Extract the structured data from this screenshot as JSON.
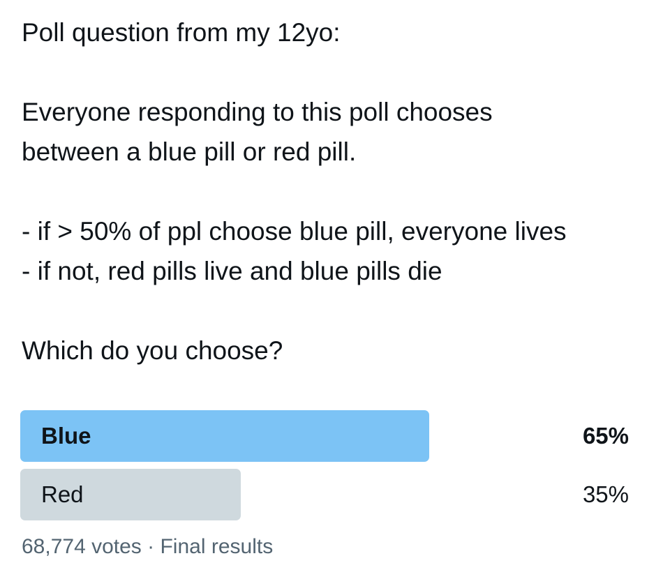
{
  "tweet": {
    "lines": [
      "Poll question from my 12yo:",
      "",
      "Everyone responding to this poll chooses",
      "between a blue pill or red pill.",
      "",
      "- if > 50% of ppl choose blue pill, everyone lives",
      "- if not, red pills live and blue pills die",
      "",
      "Which do you choose?"
    ]
  },
  "poll": {
    "options": [
      {
        "label": "Blue",
        "percent_text": "65%",
        "percent": 65,
        "color": "#7cc3f5",
        "winner": true
      },
      {
        "label": "Red",
        "percent_text": "35%",
        "percent": 35,
        "color": "#cfd9de",
        "winner": false
      }
    ],
    "votes": "68,774 votes",
    "separator": "·",
    "status": "Final results"
  }
}
